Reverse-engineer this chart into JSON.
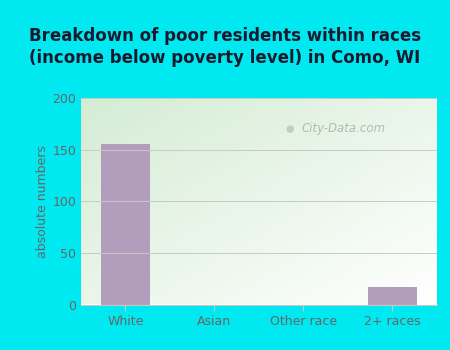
{
  "title": "Breakdown of poor residents within races\n(income below poverty level) in Como, WI",
  "categories": [
    "White",
    "Asian",
    "Other race",
    "2+ races"
  ],
  "values": [
    155,
    0,
    0,
    17
  ],
  "bar_color": "#b39dbd",
  "ylabel": "absolute numbers",
  "ylim": [
    0,
    200
  ],
  "yticks": [
    0,
    50,
    100,
    150,
    200
  ],
  "background_color": "#00e8f0",
  "plot_bg_color_topleft": "#d4ecd4",
  "plot_bg_color_bottomright": "#f5faf5",
  "grid_color": "#c8c8c8",
  "title_color": "#1a1a2e",
  "tick_color": "#666666",
  "watermark": "City-Data.com",
  "title_fontsize": 12,
  "ylabel_fontsize": 9,
  "tick_fontsize": 9
}
